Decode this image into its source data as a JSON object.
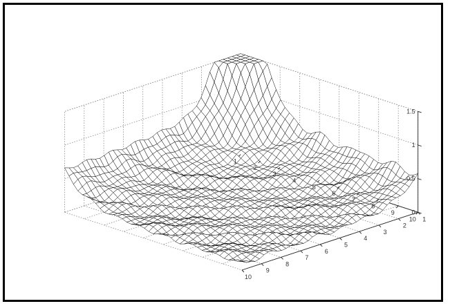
{
  "chart_data": {
    "type": "surface",
    "title": "",
    "xlabel": "",
    "ylabel": "",
    "zlabel": "",
    "grid": true,
    "x_ticks": [
      1,
      2,
      3,
      4,
      5,
      6,
      7,
      8,
      9,
      10
    ],
    "y_ticks": [
      1,
      2,
      3,
      4,
      5,
      6,
      7,
      8,
      9,
      10
    ],
    "z_ticks": [
      0,
      0.5,
      1,
      1.5
    ],
    "z_tick_labels": [
      "0",
      "0.5",
      "1",
      "1.5"
    ],
    "xlim": [
      1,
      10
    ],
    "ylim": [
      1,
      10
    ],
    "zlim": [
      0,
      1.5
    ],
    "surface_grid_size": 40,
    "surface_shape": {
      "peak_corner": {
        "x": 1,
        "y": 1,
        "z": 1.45
      },
      "edge_height_x1": 0.62,
      "edge_height_y1": 0.55,
      "center_height": 0.15,
      "far_corner": {
        "x": 10,
        "y": 10,
        "z": 0.1
      }
    },
    "colors": {
      "mesh_line": "#000000",
      "mesh_face": "#ffffff",
      "grid": "#888888",
      "contour_cyan": "#00c8c8",
      "contour_blue": "#1a3cff"
    }
  }
}
